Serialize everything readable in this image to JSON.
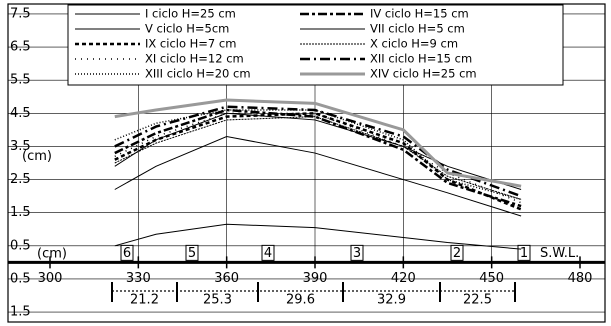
{
  "chart_data": {
    "type": "line",
    "y_label": "(cm)",
    "y_label_lower": "(cm)",
    "swl_label": "S.W.L.",
    "section_labels": [
      "6",
      "5",
      "4",
      "3",
      "2",
      "1"
    ],
    "section_lengths": [
      "21.2",
      "25.3",
      "29.6",
      "32.9",
      "22.5"
    ],
    "x": [
      322,
      336,
      360,
      390,
      420,
      435,
      460
    ],
    "xlim": [
      300,
      480
    ],
    "xticks": [
      300,
      330,
      360,
      390,
      420,
      450,
      480
    ],
    "ylim": [
      -1.8,
      7.8
    ],
    "yticks": [
      7.5,
      6.5,
      5.5,
      4.5,
      3.5,
      2.5,
      1.5,
      0.5,
      {
        "value": -0.5,
        "label": "0.5"
      },
      {
        "value": -1.5,
        "label": "1.5"
      }
    ],
    "grid": true,
    "series": [
      {
        "name": "I ciclo H=25 cm",
        "color": "#000000",
        "width": 1,
        "dash": "none",
        "values": [
          2.9,
          3.7,
          4.5,
          4.3,
          3.5,
          2.9,
          2.2
        ]
      },
      {
        "name": "IV ciclo H=15 cm",
        "color": "#000000",
        "width": 2.5,
        "dash": "9 3 3 3",
        "values": [
          3.3,
          3.9,
          4.6,
          4.4,
          3.4,
          2.4,
          1.7
        ]
      },
      {
        "name": "V ciclo H=5cm",
        "color": "#000000",
        "width": 1,
        "dash": "none",
        "values": [
          0.5,
          0.85,
          1.15,
          1.05,
          0.75,
          0.6,
          0.4
        ]
      },
      {
        "name": "VII ciclo H=5 cm",
        "color": "#000000",
        "width": 1,
        "dash": "none",
        "values": [
          2.2,
          2.9,
          3.8,
          3.3,
          2.5,
          2.1,
          1.4
        ]
      },
      {
        "name": "IX ciclo H=7 cm",
        "color": "#000000",
        "width": 2.5,
        "dash": "4 3",
        "values": [
          3.1,
          3.7,
          4.4,
          4.5,
          3.6,
          2.5,
          1.6
        ]
      },
      {
        "name": "X ciclo H=9 cm",
        "color": "#000000",
        "width": 1,
        "dash": "2 1",
        "values": [
          3.0,
          3.6,
          4.3,
          4.4,
          3.5,
          2.6,
          1.9
        ]
      },
      {
        "name": "XI ciclo H=12 cm",
        "color": "#000000",
        "width": 1.5,
        "dash": "1 5",
        "values": [
          3.2,
          3.8,
          4.5,
          4.5,
          3.5,
          2.7,
          1.8
        ]
      },
      {
        "name": "XII ciclo H=15 cm",
        "color": "#000000",
        "width": 2.5,
        "dash": "10 4 2 4",
        "values": [
          3.5,
          4.1,
          4.7,
          4.6,
          3.8,
          2.8,
          2.0
        ]
      },
      {
        "name": "XIII ciclo H=20 cm",
        "color": "#000000",
        "width": 1.5,
        "dash": "1 2",
        "values": [
          3.7,
          4.2,
          4.6,
          4.6,
          3.7,
          2.5,
          1.9
        ]
      },
      {
        "name": "XIV ciclo  H=25 cm",
        "color": "#999999",
        "width": 3,
        "dash": "none",
        "values": [
          4.4,
          4.6,
          4.9,
          4.8,
          4.0,
          2.7,
          2.3
        ]
      }
    ]
  }
}
